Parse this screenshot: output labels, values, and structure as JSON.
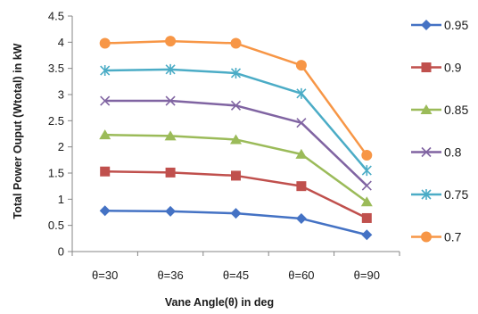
{
  "chart_data": {
    "type": "line",
    "title": "",
    "xlabel": "Vane Angle(θ) in deg",
    "ylabel": "Total Power Ouput (Wtotal) in kW",
    "categories": [
      "θ=30",
      "θ=36",
      "θ=45",
      "θ=60",
      "θ=90"
    ],
    "ylim": [
      0,
      4.5
    ],
    "yticks": [
      "0",
      "0.5",
      "1",
      "1.5",
      "2",
      "2.5",
      "3",
      "3.5",
      "4",
      "4.5"
    ],
    "grid": false,
    "legend_position": "right",
    "series": [
      {
        "name": "0.95",
        "values": [
          0.78,
          0.77,
          0.73,
          0.63,
          0.32
        ],
        "color": "#4472C4",
        "marker": "diamond"
      },
      {
        "name": "0.9",
        "values": [
          1.53,
          1.51,
          1.45,
          1.25,
          0.64
        ],
        "color": "#C0504D",
        "marker": "square"
      },
      {
        "name": "0.85",
        "values": [
          2.23,
          2.21,
          2.14,
          1.86,
          0.95
        ],
        "color": "#9BBB59",
        "marker": "triangle"
      },
      {
        "name": "0.8",
        "values": [
          2.88,
          2.88,
          2.79,
          2.46,
          1.26
        ],
        "color": "#8064A2",
        "marker": "x"
      },
      {
        "name": "0.75",
        "values": [
          3.46,
          3.48,
          3.41,
          3.02,
          1.55
        ],
        "color": "#4BACC6",
        "marker": "star"
      },
      {
        "name": "0.7",
        "values": [
          3.98,
          4.02,
          3.98,
          3.56,
          1.84
        ],
        "color": "#F79646",
        "marker": "circle"
      }
    ]
  }
}
